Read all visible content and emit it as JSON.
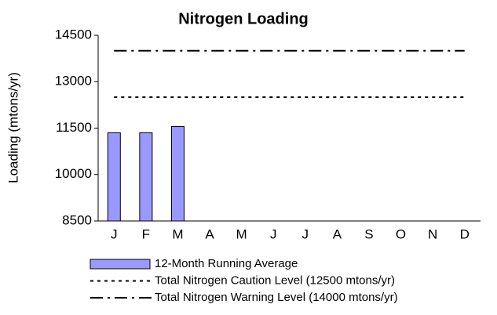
{
  "chart_data": {
    "type": "bar",
    "title": "Nitrogen Loading",
    "y_label": "Loading (mtons/yr)",
    "categories": [
      "J",
      "F",
      "M",
      "A",
      "M",
      "J",
      "J",
      "A",
      "S",
      "O",
      "N",
      "D"
    ],
    "series": [
      {
        "name": "12-Month Running Average",
        "type": "bar",
        "color": "#9999ff",
        "values": [
          11350,
          11350,
          11550,
          null,
          null,
          null,
          null,
          null,
          null,
          null,
          null,
          null
        ]
      },
      {
        "name": "Total Nitrogen Caution Level (12500 mtons/yr)",
        "type": "line",
        "color": "#000000",
        "dash": "4 5",
        "values": [
          12500,
          12500,
          12500,
          12500,
          12500,
          12500,
          12500,
          12500,
          12500,
          12500,
          12500,
          12500
        ]
      },
      {
        "name": "Total Nitrogen Warning Level (14000 mtons/yr)",
        "type": "line",
        "color": "#000000",
        "dash": "16 6 3 6",
        "values": [
          14000,
          14000,
          14000,
          14000,
          14000,
          14000,
          14000,
          14000,
          14000,
          14000,
          14000,
          14000
        ]
      }
    ],
    "ylim": [
      8500,
      14500
    ],
    "yticks": [
      8500,
      10000,
      11500,
      13000,
      14500
    ]
  }
}
